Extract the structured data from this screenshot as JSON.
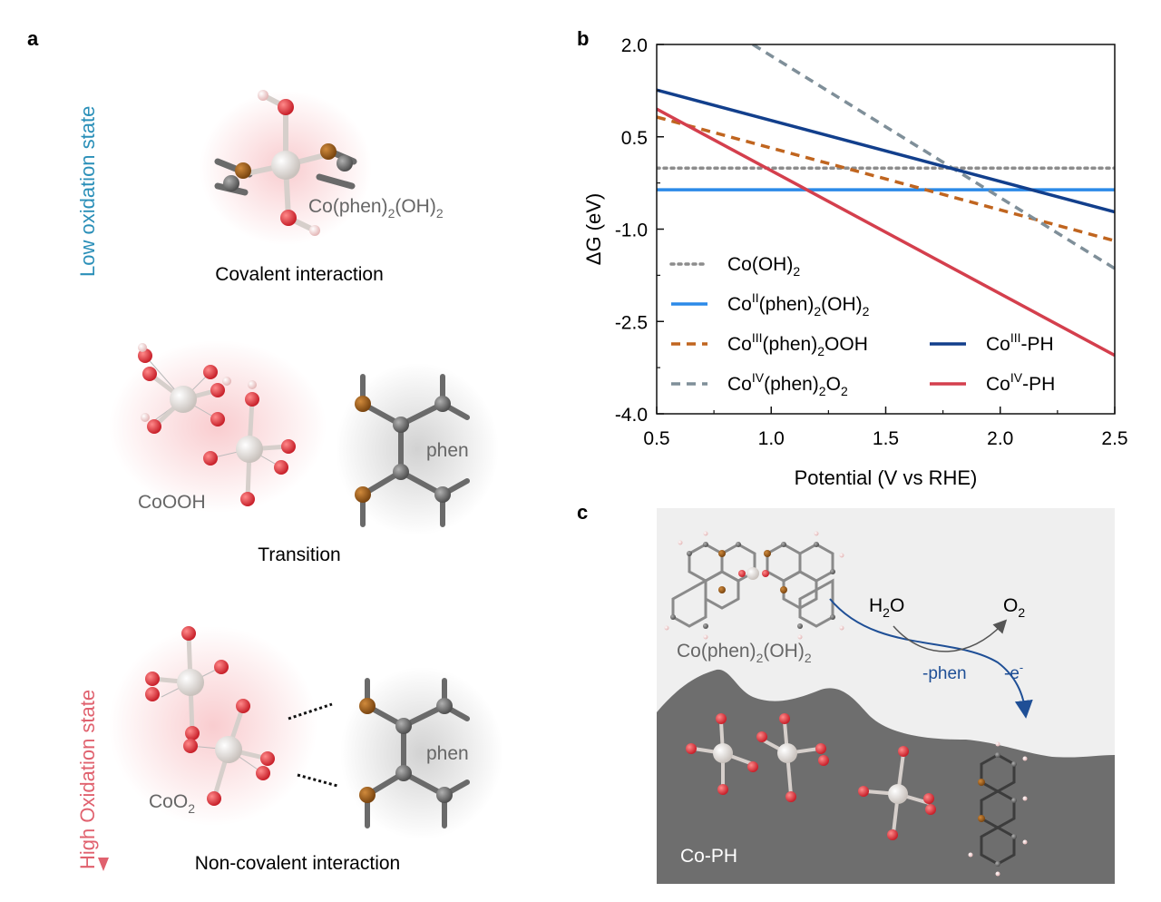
{
  "panel_a": {
    "label": "a",
    "axis_low": "Low oxidation state",
    "axis_high": "High Oxidation state",
    "structures": [
      {
        "name": "Co(phen)",
        "sub1": "2",
        "mid": "(OH)",
        "sub2": "2",
        "caption": "Covalent interaction"
      },
      {
        "name": "CoOOH",
        "partner": "phen",
        "caption": "Transition"
      },
      {
        "name": "CoO",
        "sub1": "2",
        "partner": "phen",
        "caption": "Non-covalent interaction"
      }
    ]
  },
  "panel_b": {
    "label": "b"
  },
  "panel_c": {
    "label": "c",
    "molecule_name": "Co(phen)",
    "molecule_sub1": "2",
    "molecule_mid": "(OH)",
    "molecule_sub2": "2",
    "reactant": "H",
    "reactant_sub": "2",
    "reactant_tail": "O",
    "product": "O",
    "product_sub": "2",
    "step1": "-phen",
    "step2": "-e",
    "step2_sup": "-",
    "substrate_label": "Co-PH"
  },
  "chart_data": {
    "type": "line",
    "xlabel": "Potential (V vs RHE)",
    "ylabel": "ΔG (eV)",
    "xlim": [
      0.5,
      2.5
    ],
    "ylim": [
      -4.0,
      2.0
    ],
    "xticks": [
      "0.5",
      "1.0",
      "1.5",
      "2.0",
      "2.5"
    ],
    "yticks": [
      "2.0",
      "0.5",
      "-1.0",
      "-2.5",
      "-4.0"
    ],
    "series": [
      {
        "name": "Co(OH)2",
        "label_parts": [
          "Co(OH)",
          "2"
        ],
        "color": "#8c8c8c",
        "dash": "dot",
        "x": [
          0.5,
          2.5
        ],
        "y": [
          -0.01,
          -0.01
        ]
      },
      {
        "name": "CoII(phen)2(OH)2",
        "label_parts": [
          "Co",
          "II",
          "(phen)",
          "2",
          "(OH)",
          "2"
        ],
        "color": "#2b8ae8",
        "dash": "solid",
        "x": [
          0.5,
          2.5
        ],
        "y": [
          -0.36,
          -0.36
        ]
      },
      {
        "name": "CoIII(phen)2OOH",
        "label_parts": [
          "Co",
          "III",
          "(phen)",
          "2",
          "OOH"
        ],
        "color": "#c0651f",
        "dash": "dash",
        "x": [
          0.5,
          2.5
        ],
        "y": [
          0.82,
          -1.19
        ]
      },
      {
        "name": "CoIV(phen)2O2",
        "label_parts": [
          "Co",
          "IV",
          "(phen)",
          "2",
          "O",
          "2"
        ],
        "color": "#7f8f99",
        "dash": "dash",
        "x": [
          0.92,
          2.5
        ],
        "y": [
          2.0,
          -1.64
        ]
      },
      {
        "name": "CoIII-PH",
        "label_parts": [
          "Co",
          "III",
          "-PH"
        ],
        "color": "#123f8c",
        "dash": "solid",
        "x": [
          0.5,
          2.5
        ],
        "y": [
          1.26,
          -0.72
        ]
      },
      {
        "name": "CoIV-PH",
        "label_parts": [
          "Co",
          "IV",
          "-PH"
        ],
        "color": "#d43f4d",
        "dash": "solid",
        "x": [
          0.5,
          2.5
        ],
        "y": [
          0.95,
          -3.05
        ]
      }
    ]
  }
}
